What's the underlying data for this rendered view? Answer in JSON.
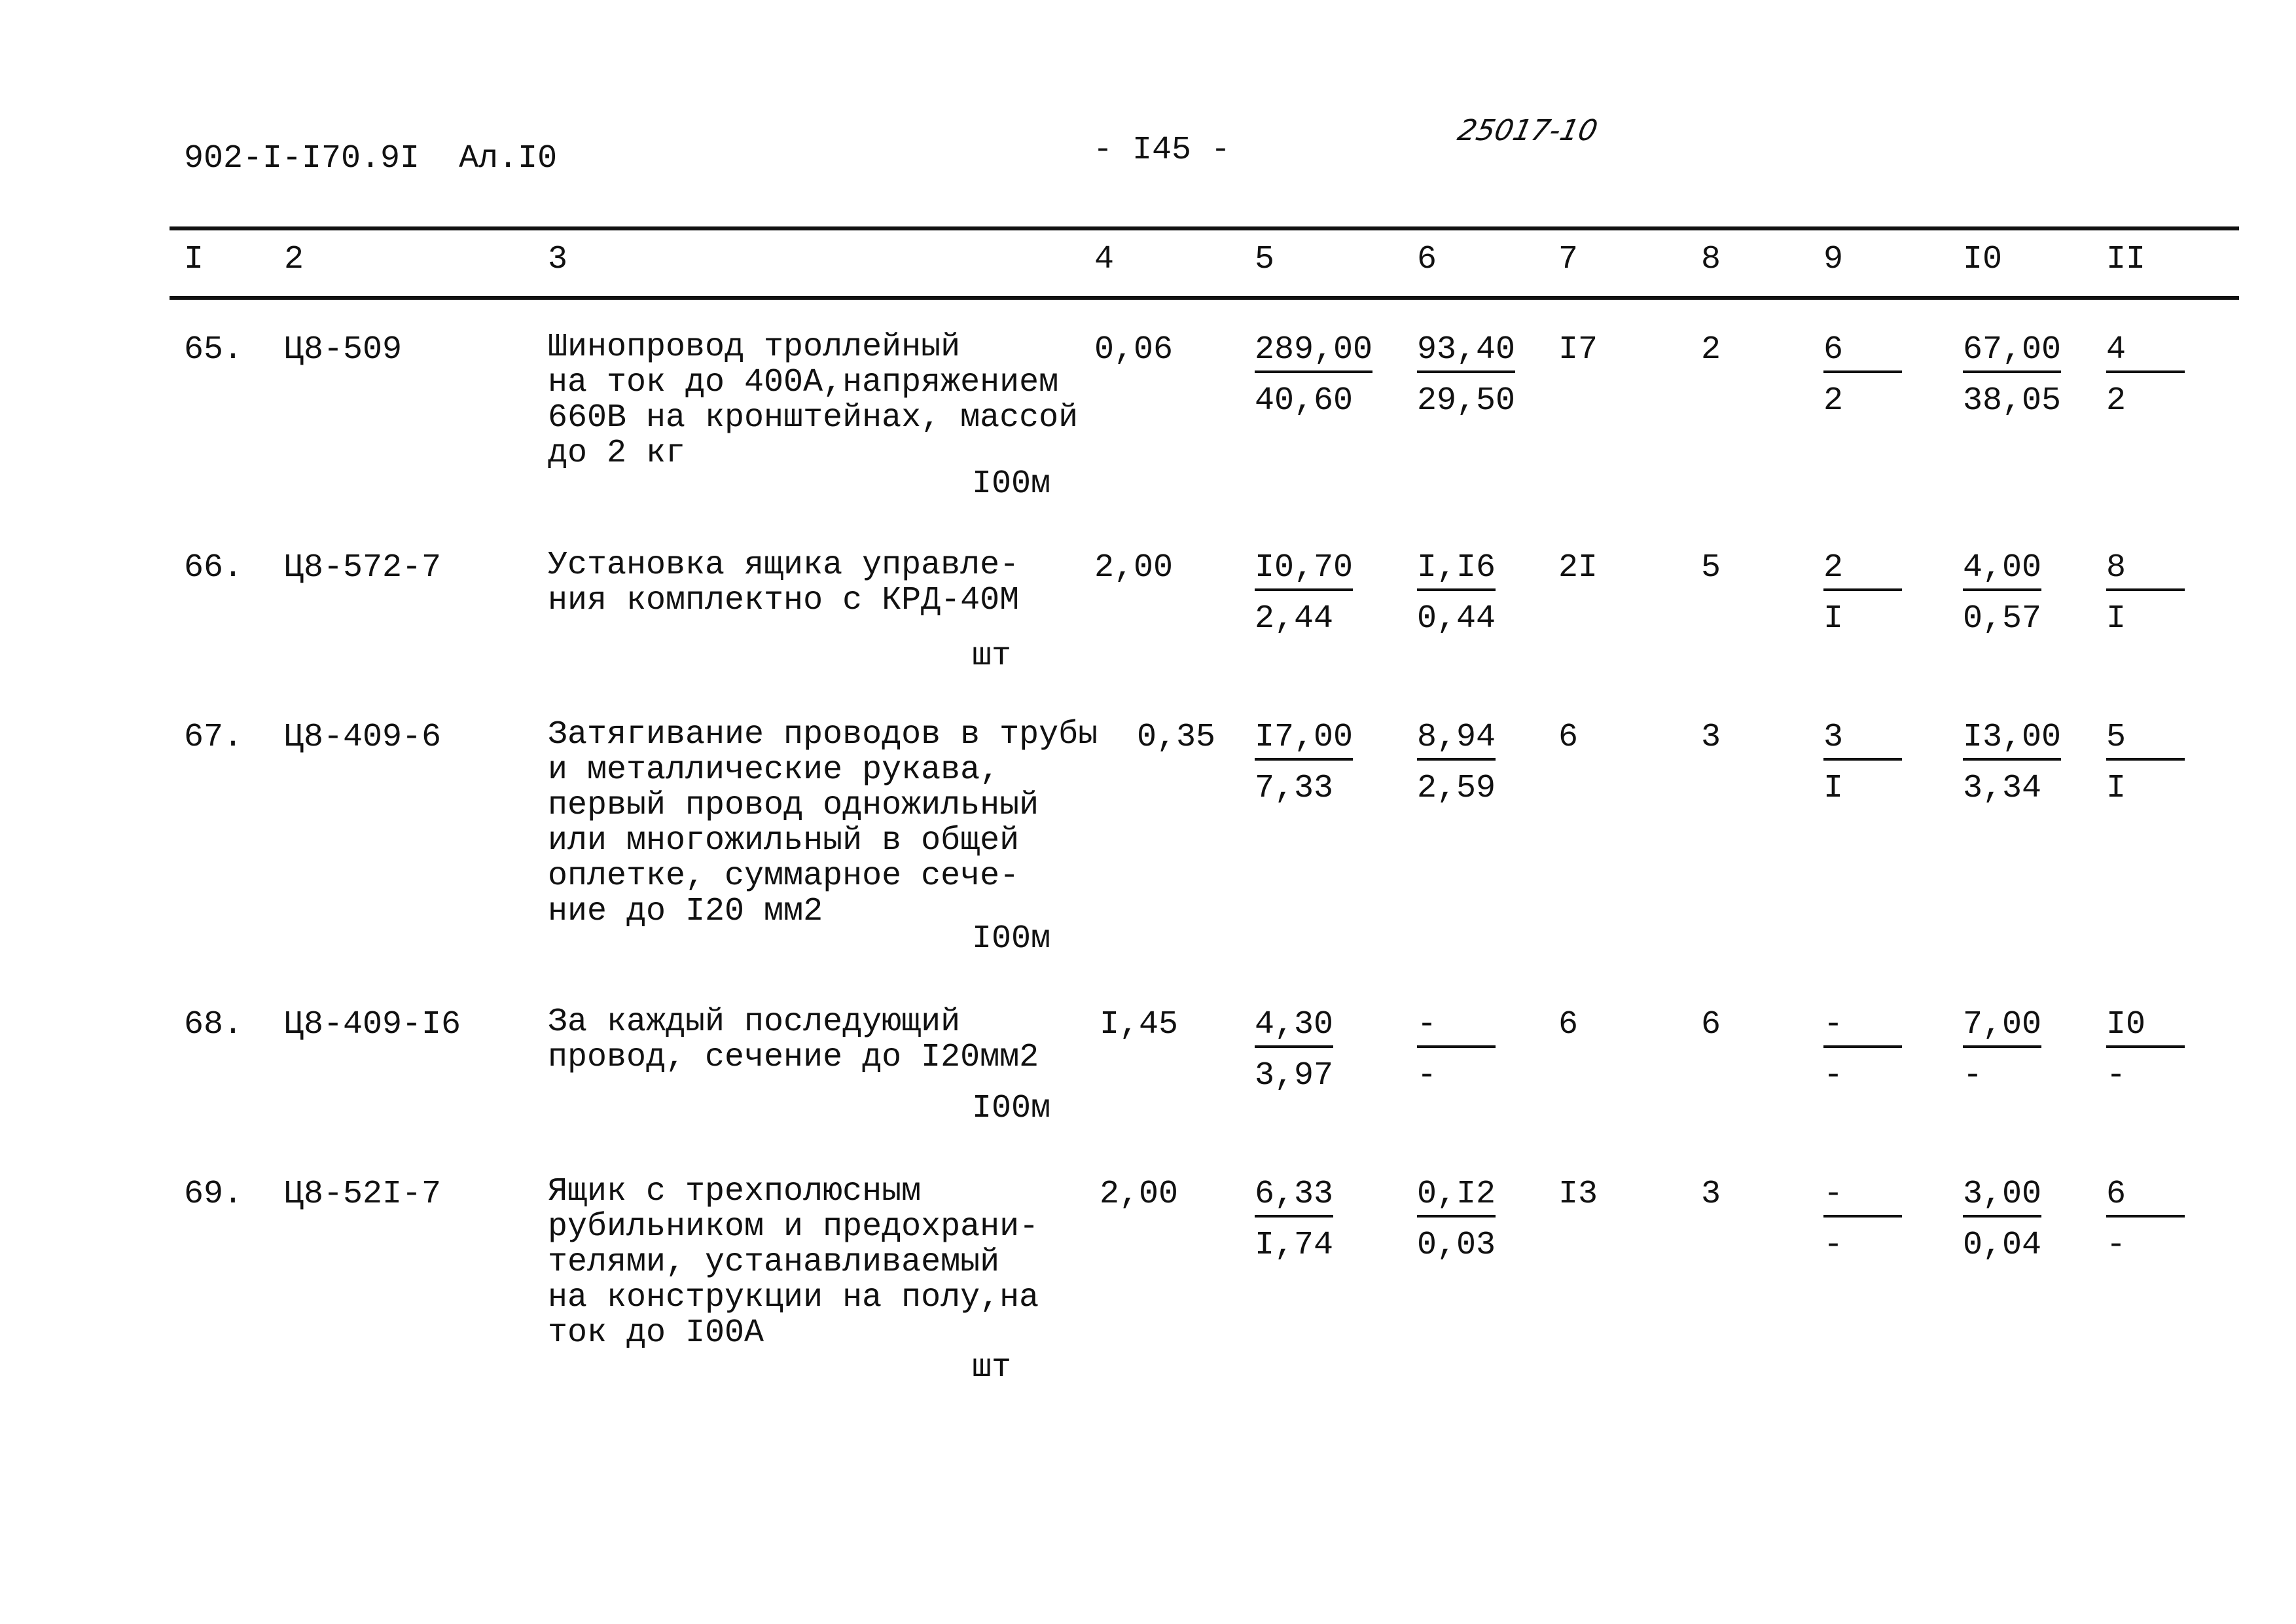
{
  "header": {
    "doc_code": "902-I-I70.9I  Ал.I0",
    "page_number": "- I45 -",
    "handwritten_note": "25017-10"
  },
  "columns": [
    "I",
    "2",
    "3",
    "4",
    "5",
    "6",
    "7",
    "8",
    "9",
    "I0",
    "II"
  ],
  "rows": [
    {
      "num": "65.",
      "code": "Ц8-509",
      "desc": [
        "Шинопровод троллейный",
        "на ток до 400А,напряжением",
        "660В на кронштейнах, массой",
        "до 2 кг"
      ],
      "unit": "I00м",
      "c4": "0,06",
      "c5": [
        "289,00",
        "40,60"
      ],
      "c6": [
        "93,40",
        "29,50"
      ],
      "c7": "I7",
      "c8": "2",
      "c9": [
        "6",
        "2"
      ],
      "c10": [
        "67,00",
        "38,05"
      ],
      "c11": [
        "4",
        "2"
      ]
    },
    {
      "num": "66.",
      "code": "Ц8-572-7",
      "desc": [
        "Установка ящика управле-",
        "ния комплектно с КРД-40М"
      ],
      "unit": "шт",
      "c4": "2,00",
      "c5": [
        "I0,70",
        "2,44"
      ],
      "c6": [
        "I,I6",
        "0,44"
      ],
      "c7": "2I",
      "c8": "5",
      "c9": [
        "2",
        "I"
      ],
      "c10": [
        "4,00",
        "0,57"
      ],
      "c11": [
        "8",
        "I"
      ]
    },
    {
      "num": "67.",
      "code": "Ц8-409-6",
      "desc": [
        "Затягивание проводов в трубы",
        "и металлические рукава,",
        "первый провод одножильный",
        "или многожильный в общей",
        "оплетке, суммарное сече-",
        "ние до I20 мм2"
      ],
      "unit": "I00м",
      "c4": "0,35",
      "c5": [
        "I7,00",
        "7,33"
      ],
      "c6": [
        "8,94",
        "2,59"
      ],
      "c7": "6",
      "c8": "3",
      "c9": [
        "3",
        "I"
      ],
      "c10": [
        "I3,00",
        "3,34"
      ],
      "c11": [
        "5",
        "I"
      ]
    },
    {
      "num": "68.",
      "code": "Ц8-409-I6",
      "desc": [
        "За каждый последующий",
        "провод, сечение до I20мм2"
      ],
      "unit": "I00м",
      "c4": "I,45",
      "c5": [
        "4,30",
        "3,97"
      ],
      "c6": [
        "-",
        "-"
      ],
      "c7": "6",
      "c8": "6",
      "c9": [
        "-",
        "-"
      ],
      "c10": [
        "7,00",
        "-"
      ],
      "c11": [
        "I0",
        "-"
      ]
    },
    {
      "num": "69.",
      "code": "Ц8-52I-7",
      "desc": [
        "Ящик с трехполюсным",
        "рубильником и предохрани-",
        "телями, устанавливаемый",
        "на конструкции на полу,на",
        "ток до I00А"
      ],
      "unit": "шт",
      "c4": "2,00",
      "c5": [
        "6,33",
        "I,74"
      ],
      "c6": [
        "0,I2",
        "0,03"
      ],
      "c7": "I3",
      "c8": "3",
      "c9": [
        "-",
        "-"
      ],
      "c10": [
        "3,00",
        "0,04"
      ],
      "c11": [
        "6",
        "-"
      ]
    }
  ]
}
